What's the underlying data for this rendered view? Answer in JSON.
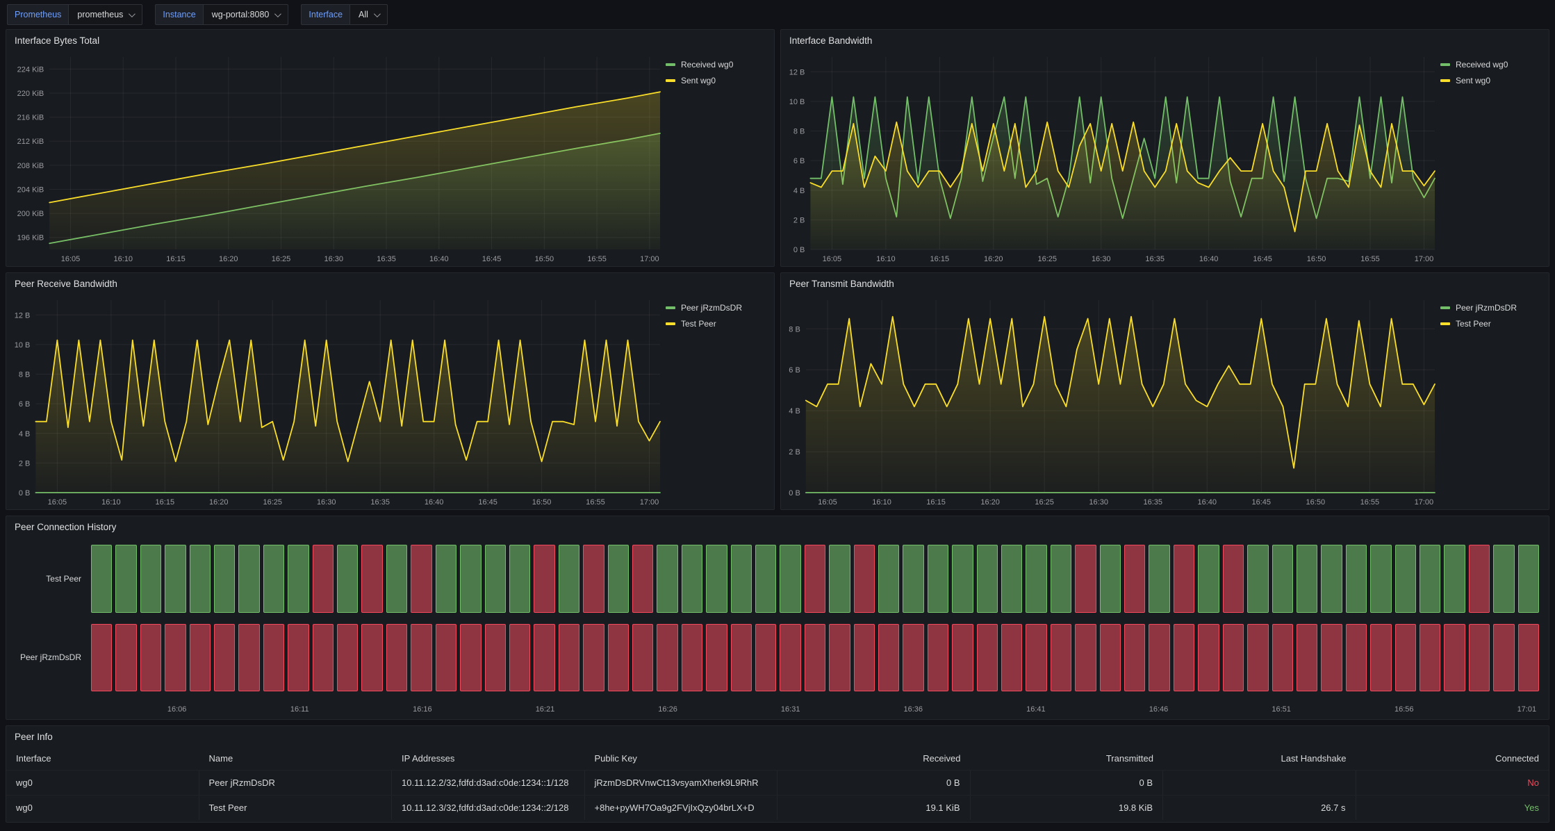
{
  "toolbar": {
    "groups": [
      {
        "label": "Prometheus",
        "value": "prometheus"
      },
      {
        "label": "Instance",
        "value": "wg-portal:8080"
      },
      {
        "label": "Interface",
        "value": "All"
      }
    ]
  },
  "colors": {
    "green": "#73BF69",
    "yellow": "#FADE2A",
    "red": "#F2495C",
    "page_bg": "#111217",
    "panel_bg": "#181B1F",
    "grid": "rgba(204,204,220,0.08)",
    "axis_text": "#9A9BA2",
    "text": "#D8D9DA",
    "link_blue": "#6E9FFF",
    "status_yes": "#73BF69",
    "status_no": "#F2495C"
  },
  "series_pool": {
    "bandwidth_recv": [
      4.8,
      4.8,
      10.3,
      4.4,
      10.3,
      4.8,
      10.3,
      4.8,
      2.2,
      10.3,
      4.5,
      10.3,
      4.8,
      2.1,
      4.8,
      10.3,
      4.6,
      7.6,
      10.3,
      4.8,
      10.3,
      4.4,
      4.8,
      2.2,
      4.8,
      10.3,
      4.5,
      10.3,
      4.8,
      2.1,
      4.8,
      7.5,
      4.8,
      10.3,
      4.5,
      10.3,
      4.8,
      4.8,
      10.3,
      4.6,
      2.2,
      4.8,
      4.8,
      10.3,
      4.6,
      10.3,
      4.8,
      2.1,
      4.8,
      4.8,
      4.6,
      10.3,
      4.8,
      10.3,
      4.5,
      10.3,
      4.8,
      3.5,
      4.8
    ],
    "bandwidth_sent": [
      4.5,
      4.2,
      5.3,
      5.3,
      8.5,
      4.2,
      6.3,
      5.3,
      8.6,
      5.3,
      4.2,
      5.3,
      5.3,
      4.2,
      5.3,
      8.5,
      5.3,
      8.5,
      5.3,
      8.5,
      4.2,
      5.3,
      8.6,
      5.3,
      4.2,
      7.0,
      8.5,
      5.3,
      8.5,
      5.3,
      8.6,
      5.3,
      4.2,
      5.3,
      8.5,
      5.3,
      4.5,
      4.2,
      5.3,
      6.2,
      5.3,
      5.3,
      8.5,
      5.3,
      4.2,
      1.2,
      5.3,
      5.3,
      8.5,
      5.3,
      4.2,
      8.4,
      5.3,
      4.2,
      8.5,
      5.3,
      5.3,
      4.3,
      5.3
    ],
    "zeros": [
      0,
      0,
      0,
      0,
      0,
      0,
      0,
      0,
      0,
      0,
      0,
      0,
      0,
      0,
      0,
      0,
      0,
      0,
      0,
      0,
      0,
      0,
      0,
      0,
      0,
      0,
      0,
      0,
      0,
      0,
      0,
      0,
      0,
      0,
      0,
      0,
      0,
      0,
      0,
      0,
      0,
      0,
      0,
      0,
      0,
      0,
      0,
      0,
      0,
      0,
      0,
      0,
      0,
      0,
      0,
      0,
      0,
      0,
      0
    ]
  },
  "chart_data": [
    {
      "type": "line",
      "title": "Interface Bytes Total",
      "unit": "KiB",
      "x_domain": [
        0,
        58
      ],
      "x_tick_minutes": [
        2,
        7,
        12,
        17,
        22,
        27,
        32,
        37,
        42,
        47,
        52,
        57
      ],
      "x_tick_labels": [
        "16:05",
        "16:10",
        "16:15",
        "16:20",
        "16:25",
        "16:30",
        "16:35",
        "16:40",
        "16:45",
        "16:50",
        "16:55",
        "17:00"
      ],
      "y_range": [
        194,
        226
      ],
      "y_tick_values": [
        196,
        200,
        204,
        208,
        212,
        216,
        220,
        224
      ],
      "y_tick_labels": [
        "196 KiB",
        "200 KiB",
        "204 KiB",
        "208 KiB",
        "212 KiB",
        "216 KiB",
        "220 KiB",
        "224 KiB"
      ],
      "x_values": [
        0,
        5,
        10,
        15,
        20,
        25,
        30,
        35,
        40,
        45,
        50,
        55,
        58
      ],
      "series": [
        {
          "name": "Received wg0",
          "color": "#73BF69",
          "values": [
            195.0,
            196.6,
            198.2,
            199.7,
            201.3,
            202.9,
            204.5,
            206.0,
            207.6,
            209.2,
            210.8,
            212.3,
            213.3
          ]
        },
        {
          "name": "Sent wg0",
          "color": "#FADE2A",
          "values": [
            201.8,
            203.4,
            205.0,
            206.6,
            208.1,
            209.7,
            211.3,
            212.9,
            214.5,
            216.1,
            217.7,
            219.2,
            220.2
          ]
        }
      ]
    },
    {
      "type": "line",
      "title": "Interface Bandwidth",
      "unit": "B",
      "x_domain": [
        0,
        58
      ],
      "x_tick_minutes": [
        2,
        7,
        12,
        17,
        22,
        27,
        32,
        37,
        42,
        47,
        52,
        57
      ],
      "x_tick_labels": [
        "16:05",
        "16:10",
        "16:15",
        "16:20",
        "16:25",
        "16:30",
        "16:35",
        "16:40",
        "16:45",
        "16:50",
        "16:55",
        "17:00"
      ],
      "y_range": [
        0,
        13
      ],
      "y_tick_values": [
        0,
        2,
        4,
        6,
        8,
        10,
        12
      ],
      "y_tick_labels": [
        "0 B",
        "2 B",
        "4 B",
        "6 B",
        "8 B",
        "10 B",
        "12 B"
      ],
      "series": [
        {
          "name": "Received wg0",
          "color": "#73BF69",
          "values_ref": "bandwidth_recv"
        },
        {
          "name": "Sent wg0",
          "color": "#FADE2A",
          "values_ref": "bandwidth_sent"
        }
      ]
    },
    {
      "type": "line",
      "title": "Peer Receive Bandwidth",
      "unit": "B",
      "x_domain": [
        0,
        58
      ],
      "x_tick_minutes": [
        2,
        7,
        12,
        17,
        22,
        27,
        32,
        37,
        42,
        47,
        52,
        57
      ],
      "x_tick_labels": [
        "16:05",
        "16:10",
        "16:15",
        "16:20",
        "16:25",
        "16:30",
        "16:35",
        "16:40",
        "16:45",
        "16:50",
        "16:55",
        "17:00"
      ],
      "y_range": [
        0,
        13
      ],
      "y_tick_values": [
        0,
        2,
        4,
        6,
        8,
        10,
        12
      ],
      "y_tick_labels": [
        "0 B",
        "2 B",
        "4 B",
        "6 B",
        "8 B",
        "10 B",
        "12 B"
      ],
      "series": [
        {
          "name": "Peer jRzmDsDR",
          "color": "#73BF69",
          "values_ref": "zeros"
        },
        {
          "name": "Test Peer",
          "color": "#FADE2A",
          "values_ref": "bandwidth_recv"
        }
      ]
    },
    {
      "type": "line",
      "title": "Peer Transmit Bandwidth",
      "unit": "B",
      "x_domain": [
        0,
        58
      ],
      "x_tick_minutes": [
        2,
        7,
        12,
        17,
        22,
        27,
        32,
        37,
        42,
        47,
        52,
        57
      ],
      "x_tick_labels": [
        "16:05",
        "16:10",
        "16:15",
        "16:20",
        "16:25",
        "16:30",
        "16:35",
        "16:40",
        "16:45",
        "16:50",
        "16:55",
        "17:00"
      ],
      "y_range": [
        0,
        9.4
      ],
      "y_tick_values": [
        0,
        2,
        4,
        6,
        8
      ],
      "y_tick_labels": [
        "0 B",
        "2 B",
        "4 B",
        "6 B",
        "8 B"
      ],
      "series": [
        {
          "name": "Peer jRzmDsDR",
          "color": "#73BF69",
          "values_ref": "zeros"
        },
        {
          "name": "Test Peer",
          "color": "#FADE2A",
          "values_ref": "bandwidth_sent"
        }
      ]
    },
    {
      "type": "status-history",
      "title": "Peer Connection History",
      "slot_count": 59,
      "rows": [
        {
          "label": "Test Peer",
          "pattern": "GGGGGGGGGRGRGRGGGGRGRGRGGGGGGRGRGGGGGGGGRGRGRGRGGGGGGGGGRGG"
        },
        {
          "label": "Peer jRzmDsDR",
          "pattern": "RRRRRRRRRRRRRRRRRRRRRRRRRRRRRRRRRRRRRRRRRRRRRRRRRRRRRRRRRRR"
        }
      ],
      "x_tick_indices": [
        3,
        8,
        13,
        18,
        23,
        28,
        33,
        38,
        43,
        48,
        53,
        58
      ],
      "x_tick_labels": [
        "16:06",
        "16:11",
        "16:16",
        "16:21",
        "16:26",
        "16:31",
        "16:36",
        "16:41",
        "16:46",
        "16:51",
        "16:56",
        "17:01"
      ],
      "state_colors": {
        "G": "#73BF69",
        "R": "#F2495C"
      }
    },
    {
      "type": "table",
      "title": "Peer Info",
      "columns": [
        "Interface",
        "Name",
        "IP Addresses",
        "Public Key",
        "Received",
        "Transmitted",
        "Last Handshake",
        "Connected"
      ],
      "align": [
        "left",
        "left",
        "left",
        "left",
        "right",
        "right",
        "right",
        "right"
      ],
      "rows": [
        [
          "wg0",
          "Peer jRzmDsDR",
          "10.11.12.2/32,fdfd:d3ad:c0de:1234::1/128",
          "jRzmDsDRVnwCt13vsyamXherk9L9RhR",
          "0 B",
          "0 B",
          "",
          "No"
        ],
        [
          "wg0",
          "Test Peer",
          "10.11.12.3/32,fdfd:d3ad:c0de:1234::2/128",
          "+8he+pyWH7Oa9g2FVjIxQzy04brLX+D",
          "19.1 KiB",
          "19.8 KiB",
          "26.7 s",
          "Yes"
        ]
      ]
    }
  ]
}
